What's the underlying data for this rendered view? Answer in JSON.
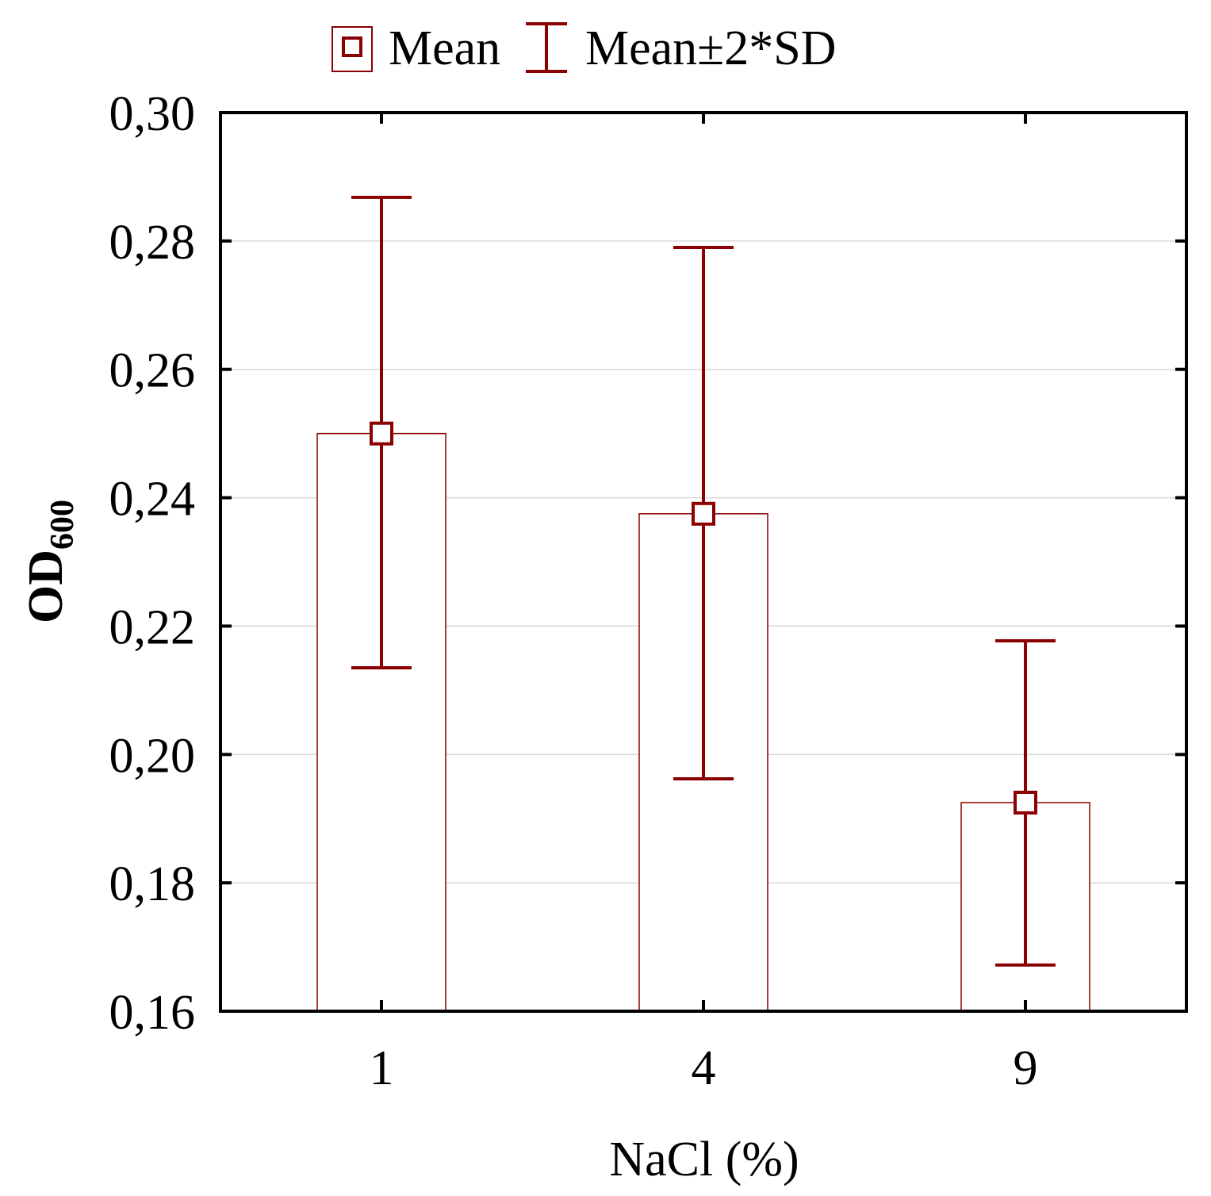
{
  "chart_data": {
    "type": "bar",
    "title": "",
    "categories": [
      "1",
      "4",
      "9"
    ],
    "series": [
      {
        "name": "Mean",
        "values": [
          0.25,
          0.2375,
          0.1925
        ],
        "error_low": [
          0.2135,
          0.1962,
          0.1672
        ],
        "error_high": [
          0.2868,
          0.279,
          0.2177
        ]
      }
    ],
    "xlabel": "NaCl (%)",
    "ylabel_main": "OD",
    "ylabel_sub": "600",
    "ylim": [
      0.16,
      0.3
    ],
    "yticks": [
      0.16,
      0.18,
      0.2,
      0.22,
      0.24,
      0.26,
      0.28,
      0.3
    ],
    "ytick_labels": [
      "0,16",
      "0,18",
      "0,20",
      "0,22",
      "0,24",
      "0,26",
      "0,28",
      "0,30"
    ],
    "grid": true,
    "legend": {
      "placement": "top-center",
      "entries": [
        {
          "label": "Mean",
          "symbol": "square"
        },
        {
          "label": "Mean±2*SD",
          "symbol": "errorbar"
        }
      ]
    },
    "colors": {
      "mark": "#8b0000",
      "bar_fill": "#ffffff",
      "grid": "#d9d9d9",
      "axis": "#000000"
    }
  }
}
